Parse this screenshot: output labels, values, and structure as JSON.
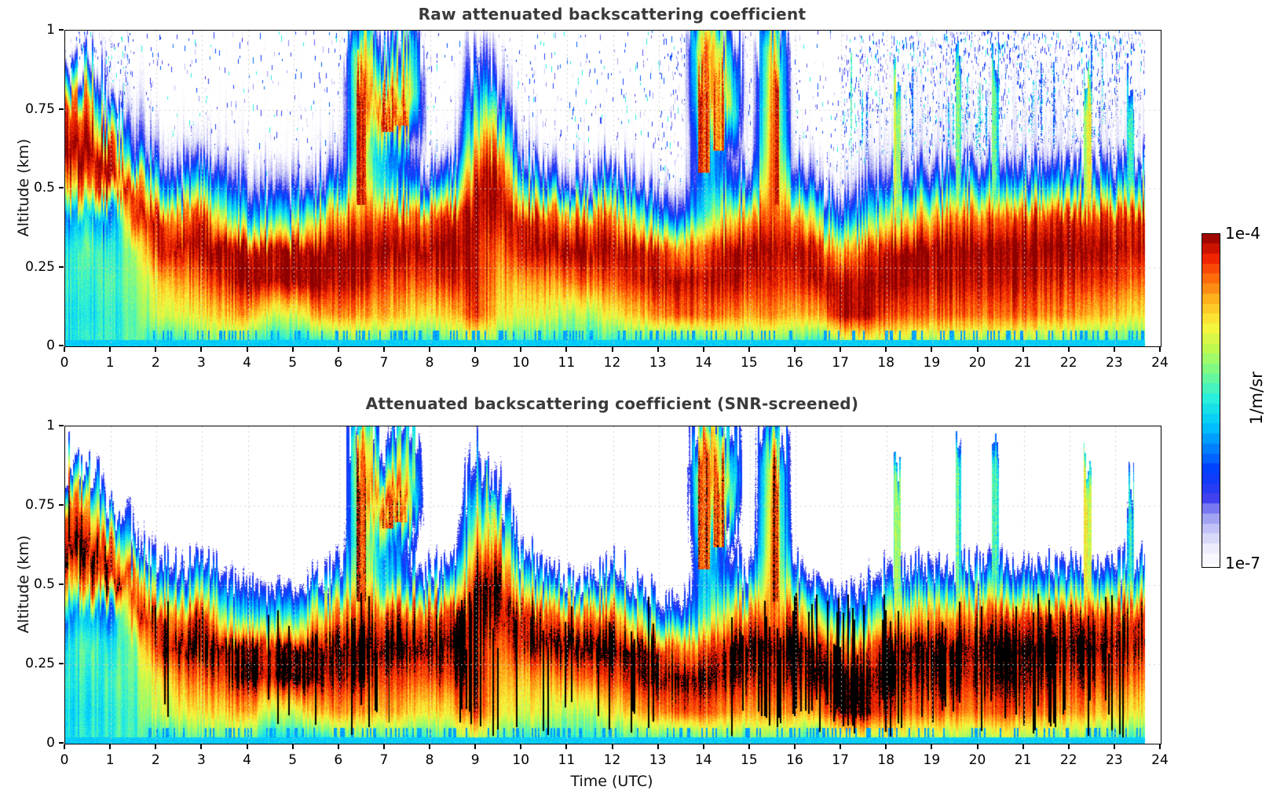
{
  "page": {
    "background": "#ffffff"
  },
  "chart_data": {
    "type": "heatmap",
    "charts": [
      {
        "title": "Raw attenuated backscattering coefficient",
        "ylabel": "Altitude (km)",
        "screened": false
      },
      {
        "title": "Attenuated backscattering coefficient (SNR-screened)",
        "ylabel": "Altitude (km)",
        "xlabel": "Time (UTC)",
        "screened": true
      }
    ],
    "x": {
      "label": "Time (UTC)",
      "min": 0,
      "max": 24,
      "ticks": [
        0,
        1,
        2,
        3,
        4,
        5,
        6,
        7,
        8,
        9,
        10,
        11,
        12,
        13,
        14,
        15,
        16,
        17,
        18,
        19,
        20,
        21,
        22,
        23,
        24
      ],
      "data_end_hour": 23.65
    },
    "y": {
      "label": "Altitude (km)",
      "min": 0,
      "max": 1,
      "tick_labels": [
        "1",
        "0.75",
        "0.5",
        "0.25",
        "0"
      ],
      "tick_values": [
        1,
        0.75,
        0.5,
        0.25,
        0
      ]
    },
    "colorbar": {
      "top_label": "1e-4",
      "bottom_label": "1e-7",
      "unit_label": "1/m/sr",
      "log10_range": [
        -7,
        -4
      ],
      "steps": 33,
      "colormap_stops": [
        [
          -7.0,
          "#ffffff"
        ],
        [
          -6.85,
          "#ebebfc"
        ],
        [
          -6.7,
          "#c8c8f8"
        ],
        [
          -6.55,
          "#9696f3"
        ],
        [
          -6.4,
          "#3c3cf0"
        ],
        [
          -6.16,
          "#003cff"
        ],
        [
          -5.95,
          "#0082ff"
        ],
        [
          -5.74,
          "#00c8ff"
        ],
        [
          -5.5,
          "#28f0dc"
        ],
        [
          -5.26,
          "#78fa8c"
        ],
        [
          -5.05,
          "#befa50"
        ],
        [
          -4.84,
          "#faf53c"
        ],
        [
          -4.6,
          "#ffb41e"
        ],
        [
          -4.39,
          "#ff640a"
        ],
        [
          -4.21,
          "#f01e00"
        ],
        [
          -4.0,
          "#8c0000"
        ]
      ]
    },
    "grid": {
      "times": [
        0,
        0.5,
        1,
        1.5,
        2,
        2.5,
        3,
        3.5,
        4,
        4.5,
        5,
        5.5,
        6,
        6.5,
        7,
        7.5,
        8,
        8.5,
        9,
        9.5,
        10,
        10.5,
        11,
        11.5,
        12,
        12.5,
        13,
        13.5,
        14,
        14.5,
        15,
        15.5,
        16,
        16.5,
        17,
        17.5,
        18,
        18.5,
        19,
        19.5,
        20,
        20.5,
        21,
        21.5,
        22,
        22.5,
        23,
        23.5,
        24
      ],
      "altitudes_km": [
        0.02,
        0.1,
        0.2,
        0.3,
        0.4,
        0.5,
        0.6,
        0.75,
        0.9
      ],
      "log10_backscatter": [
        [
          -5.6,
          -5.6,
          -5.5,
          -5.6,
          -6.0,
          -4.7,
          -4.0,
          -4.3,
          -7.1
        ],
        [
          -5.5,
          -5.6,
          -5.5,
          -5.3,
          -5.7,
          -4.4,
          -4.0,
          -4.6,
          -7.1
        ],
        [
          -5.5,
          -5.5,
          -5.4,
          -5.6,
          -6.2,
          -4.1,
          -4.2,
          -7.0,
          -7.2
        ],
        [
          -5.4,
          -5.4,
          -5.3,
          -5.2,
          -4.3,
          -4.3,
          -6.3,
          -6.9,
          -7.2
        ],
        [
          -5.5,
          -5.0,
          -4.8,
          -4.2,
          -4.1,
          -5.6,
          -6.6,
          -7.2,
          -7.2
        ],
        [
          -5.4,
          -4.9,
          -4.5,
          -4.05,
          -4.6,
          -6.2,
          -6.9,
          -7.2,
          -7.2
        ],
        [
          -5.3,
          -4.8,
          -4.4,
          -4.0,
          -4.1,
          -5.5,
          -6.7,
          -7.2,
          -7.2
        ],
        [
          -5.2,
          -4.7,
          -4.2,
          -4.0,
          -5.3,
          -6.3,
          -7.0,
          -7.2,
          -7.2
        ],
        [
          -5.3,
          -4.6,
          -4.0,
          -4.1,
          -5.8,
          -6.6,
          -7.1,
          -7.2,
          -7.2
        ],
        [
          -5.6,
          -5.0,
          -4.1,
          -4.1,
          -5.6,
          -6.6,
          -7.1,
          -7.2,
          -7.2
        ],
        [
          -5.6,
          -5.0,
          -4.0,
          -4.05,
          -5.6,
          -6.6,
          -7.1,
          -7.2,
          -7.2
        ],
        [
          -5.5,
          -4.6,
          -4.0,
          -4.0,
          -4.9,
          -6.4,
          -7.0,
          -7.2,
          -7.2
        ],
        [
          -5.3,
          -4.5,
          -4.1,
          -4.0,
          -4.5,
          -6.0,
          -6.8,
          -7.2,
          -7.2
        ],
        [
          -5.3,
          -4.6,
          -4.1,
          -4.0,
          -4.4,
          -4.8,
          -5.0,
          -4.6,
          -4.5
        ],
        [
          -5.3,
          -4.6,
          -4.3,
          -4.0,
          -4.3,
          -5.6,
          -5.9,
          -4.3,
          -6.3
        ],
        [
          -5.4,
          -4.7,
          -4.3,
          -4.0,
          -4.4,
          -6.0,
          -6.4,
          -4.5,
          -5.2
        ],
        [
          -5.4,
          -4.8,
          -4.3,
          -4.0,
          -4.4,
          -6.2,
          -7.1,
          -7.2,
          -7.2
        ],
        [
          -5.3,
          -4.7,
          -4.2,
          -4.0,
          -4.2,
          -5.8,
          -6.9,
          -7.2,
          -7.2
        ],
        [
          -5.0,
          -4.2,
          -4.1,
          -4.1,
          -4.0,
          -4.0,
          -4.5,
          -5.5,
          -6.5
        ],
        [
          -5.3,
          -4.8,
          -4.6,
          -4.4,
          -4.1,
          -4.0,
          -4.4,
          -6.2,
          -7.0
        ],
        [
          -5.4,
          -4.9,
          -4.6,
          -4.1,
          -4.1,
          -5.3,
          -6.6,
          -7.2,
          -7.2
        ],
        [
          -5.4,
          -4.9,
          -4.5,
          -4.0,
          -4.3,
          -6.0,
          -7.0,
          -7.2,
          -7.2
        ],
        [
          -5.5,
          -5.1,
          -4.5,
          -4.0,
          -4.6,
          -6.5,
          -7.1,
          -7.2,
          -7.2
        ],
        [
          -5.5,
          -5.1,
          -4.4,
          -4.0,
          -4.5,
          -6.4,
          -7.1,
          -7.2,
          -7.2
        ],
        [
          -5.4,
          -4.8,
          -4.3,
          -4.0,
          -4.4,
          -5.8,
          -7.0,
          -7.2,
          -7.2
        ],
        [
          -5.4,
          -4.7,
          -4.2,
          -4.1,
          -5.2,
          -6.6,
          -7.1,
          -7.2,
          -7.2
        ],
        [
          -5.4,
          -4.5,
          -4.1,
          -4.2,
          -5.9,
          -6.9,
          -7.2,
          -7.2,
          -7.2
        ],
        [
          -5.4,
          -4.3,
          -4.0,
          -4.5,
          -6.2,
          -6.9,
          -7.2,
          -7.2,
          -7.2
        ],
        [
          -5.3,
          -4.4,
          -4.1,
          -4.4,
          -5.5,
          -5.8,
          -5.4,
          -4.6,
          -4.3
        ],
        [
          -5.3,
          -4.5,
          -4.1,
          -4.1,
          -4.9,
          -6.0,
          -6.5,
          -4.8,
          -5.5
        ],
        [
          -5.3,
          -4.6,
          -4.2,
          -4.0,
          -4.5,
          -6.2,
          -7.0,
          -7.2,
          -7.2
        ],
        [
          -5.2,
          -4.5,
          -4.2,
          -4.1,
          -4.4,
          -4.3,
          -4.3,
          -4.4,
          -4.6
        ],
        [
          -5.3,
          -4.6,
          -4.2,
          -4.0,
          -4.4,
          -5.9,
          -6.9,
          -7.2,
          -7.2
        ],
        [
          -5.5,
          -4.6,
          -4.05,
          -4.2,
          -5.4,
          -6.7,
          -7.1,
          -7.2,
          -7.2
        ],
        [
          -5.0,
          -4.0,
          -4.0,
          -4.6,
          -6.0,
          -6.9,
          -7.1,
          -7.2,
          -7.2
        ],
        [
          -4.9,
          -4.0,
          -4.0,
          -4.3,
          -5.7,
          -6.5,
          -6.9,
          -7.05,
          -7.1
        ],
        [
          -5.0,
          -4.3,
          -4.0,
          -4.1,
          -5.0,
          -6.3,
          -6.9,
          -7.05,
          -7.1
        ],
        [
          -5.1,
          -4.4,
          -4.1,
          -4.0,
          -4.8,
          -6.1,
          -6.9,
          -7.05,
          -7.1
        ],
        [
          -5.1,
          -4.4,
          -4.1,
          -4.0,
          -4.6,
          -6.0,
          -6.9,
          -7.05,
          -7.1
        ],
        [
          -5.1,
          -4.4,
          -4.1,
          -4.0,
          -4.5,
          -5.9,
          -6.9,
          -7.05,
          -7.1
        ],
        [
          -5.1,
          -4.4,
          -4.1,
          -4.0,
          -4.4,
          -5.8,
          -6.9,
          -7.05,
          -7.1
        ],
        [
          -5.1,
          -4.4,
          -4.1,
          -4.0,
          -4.4,
          -5.9,
          -6.9,
          -7.05,
          -7.1
        ],
        [
          -5.1,
          -4.4,
          -4.1,
          -4.0,
          -4.3,
          -5.9,
          -6.9,
          -7.05,
          -7.1
        ],
        [
          -5.2,
          -4.5,
          -4.2,
          -4.0,
          -4.3,
          -5.9,
          -6.9,
          -7.05,
          -7.1
        ],
        [
          -5.2,
          -4.5,
          -4.2,
          -4.0,
          -4.2,
          -5.8,
          -6.9,
          -7.05,
          -7.1
        ],
        [
          -5.3,
          -4.6,
          -4.2,
          -4.0,
          -4.3,
          -5.9,
          -6.9,
          -7.05,
          -7.1
        ],
        [
          -5.3,
          -4.7,
          -4.3,
          -4.1,
          -4.3,
          -5.9,
          -6.9,
          -7.05,
          -7.1
        ],
        [
          -5.4,
          -4.8,
          -4.4,
          -4.1,
          -4.2,
          -5.7,
          -6.9,
          -7.05,
          -7.1
        ],
        [
          -5.4,
          -4.8,
          -4.4,
          -4.1,
          -4.2,
          -5.7,
          -6.9,
          -7.05,
          -7.1
        ]
      ]
    },
    "clouds": [
      [
        6.38,
        6.58,
        0.45,
        1.0,
        -4.2
      ],
      [
        6.95,
        7.18,
        0.68,
        0.9,
        -4.25
      ],
      [
        7.2,
        7.5,
        0.7,
        0.88,
        -4.4
      ],
      [
        9.2,
        9.45,
        0.55,
        0.9,
        -5.0
      ],
      [
        13.85,
        14.12,
        0.55,
        1.0,
        -4.3
      ],
      [
        14.18,
        14.42,
        0.62,
        1.0,
        -4.45
      ],
      [
        15.5,
        15.63,
        0.45,
        1.0,
        -4.25
      ],
      [
        18.15,
        18.3,
        0.4,
        0.95,
        -5.1
      ],
      [
        19.5,
        19.62,
        0.35,
        1.0,
        -5.4
      ],
      [
        20.3,
        20.45,
        0.35,
        1.0,
        -5.5
      ],
      [
        22.3,
        22.48,
        0.4,
        0.95,
        -5.0
      ],
      [
        23.25,
        23.4,
        0.35,
        0.9,
        -5.6
      ]
    ],
    "noise_density_raw": [
      [
        0,
        1.5,
        0.22
      ],
      [
        1.5,
        6,
        0.05
      ],
      [
        6,
        8,
        0.12
      ],
      [
        8,
        13,
        0.06
      ],
      [
        13,
        15,
        0.15
      ],
      [
        15,
        17,
        0.07
      ],
      [
        17,
        18.5,
        0.28
      ],
      [
        18.5,
        21,
        0.4
      ],
      [
        21,
        23.65,
        0.34
      ]
    ],
    "noise_streaks_raw": [
      [
        17,
        23.65,
        0.22
      ],
      [
        13.8,
        14.5,
        0.15
      ],
      [
        6.3,
        7.6,
        0.12
      ],
      [
        8.9,
        9.5,
        0.1
      ],
      [
        0,
        1.5,
        0.06
      ],
      [
        18.5,
        21,
        0.12
      ],
      [
        21.5,
        23.4,
        0.1
      ]
    ],
    "black_sticks_screened": [
      [
        6.6,
        7.1,
        0.3
      ],
      [
        8.4,
        9.4,
        0.35
      ],
      [
        15.0,
        18.0,
        0.4
      ],
      [
        9.4,
        15.0,
        0.08
      ],
      [
        18.0,
        23.65,
        0.15
      ],
      [
        2.0,
        6.6,
        0.05
      ]
    ],
    "screen": {
      "white_below_log10": -6.45,
      "black_above_log10": -4.1
    },
    "surface_band": {
      "top_km": 0.022,
      "log10_value": -5.7
    }
  }
}
